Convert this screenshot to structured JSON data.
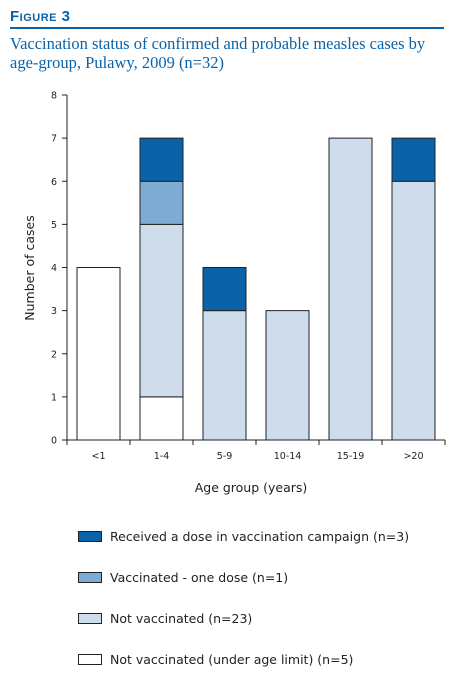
{
  "figure_label": "Figure 3",
  "title": "Vaccination status of confirmed and probable measles cases by age-group, Pulawy, 2009 (n=32)",
  "chart_data": {
    "type": "bar",
    "stacked": true,
    "categories": [
      "<1",
      "1-4",
      "5-9",
      "10-14",
      "15-19",
      ">20"
    ],
    "series": [
      {
        "name": "Not vaccinated (under age limit) (n=5)",
        "color": "#ffffff",
        "values": [
          4,
          1,
          0,
          0,
          0,
          0
        ]
      },
      {
        "name": "Not vaccinated (n=23)",
        "color": "#cfdcec",
        "values": [
          0,
          4,
          3,
          3,
          7,
          6
        ]
      },
      {
        "name": "Vaccinated - one dose (n=1)",
        "color": "#7eabd3",
        "values": [
          0,
          1,
          0,
          0,
          0,
          0
        ]
      },
      {
        "name": "Received a dose in vaccination campaign (n=3)",
        "color": "#0a63a8",
        "values": [
          0,
          1,
          1,
          0,
          0,
          1
        ]
      }
    ],
    "xlabel": "Age group (years)",
    "ylabel": "Number of cases",
    "ylim": [
      0,
      8
    ],
    "yticks": [
      "0",
      "1",
      "2",
      "3",
      "4",
      "5",
      "6",
      "7",
      "8"
    ],
    "grid": false,
    "legend_position": "bottom"
  },
  "legend": [
    {
      "label": "Received a dose in vaccination campaign (n=3)",
      "color": "#0a63a8"
    },
    {
      "label": "Vaccinated - one dose (n=1)",
      "color": "#7eabd3"
    },
    {
      "label": "Not vaccinated (n=23)",
      "color": "#cfdcec"
    },
    {
      "label": "Not vaccinated (under age limit) (n=5)",
      "color": "#ffffff"
    }
  ]
}
